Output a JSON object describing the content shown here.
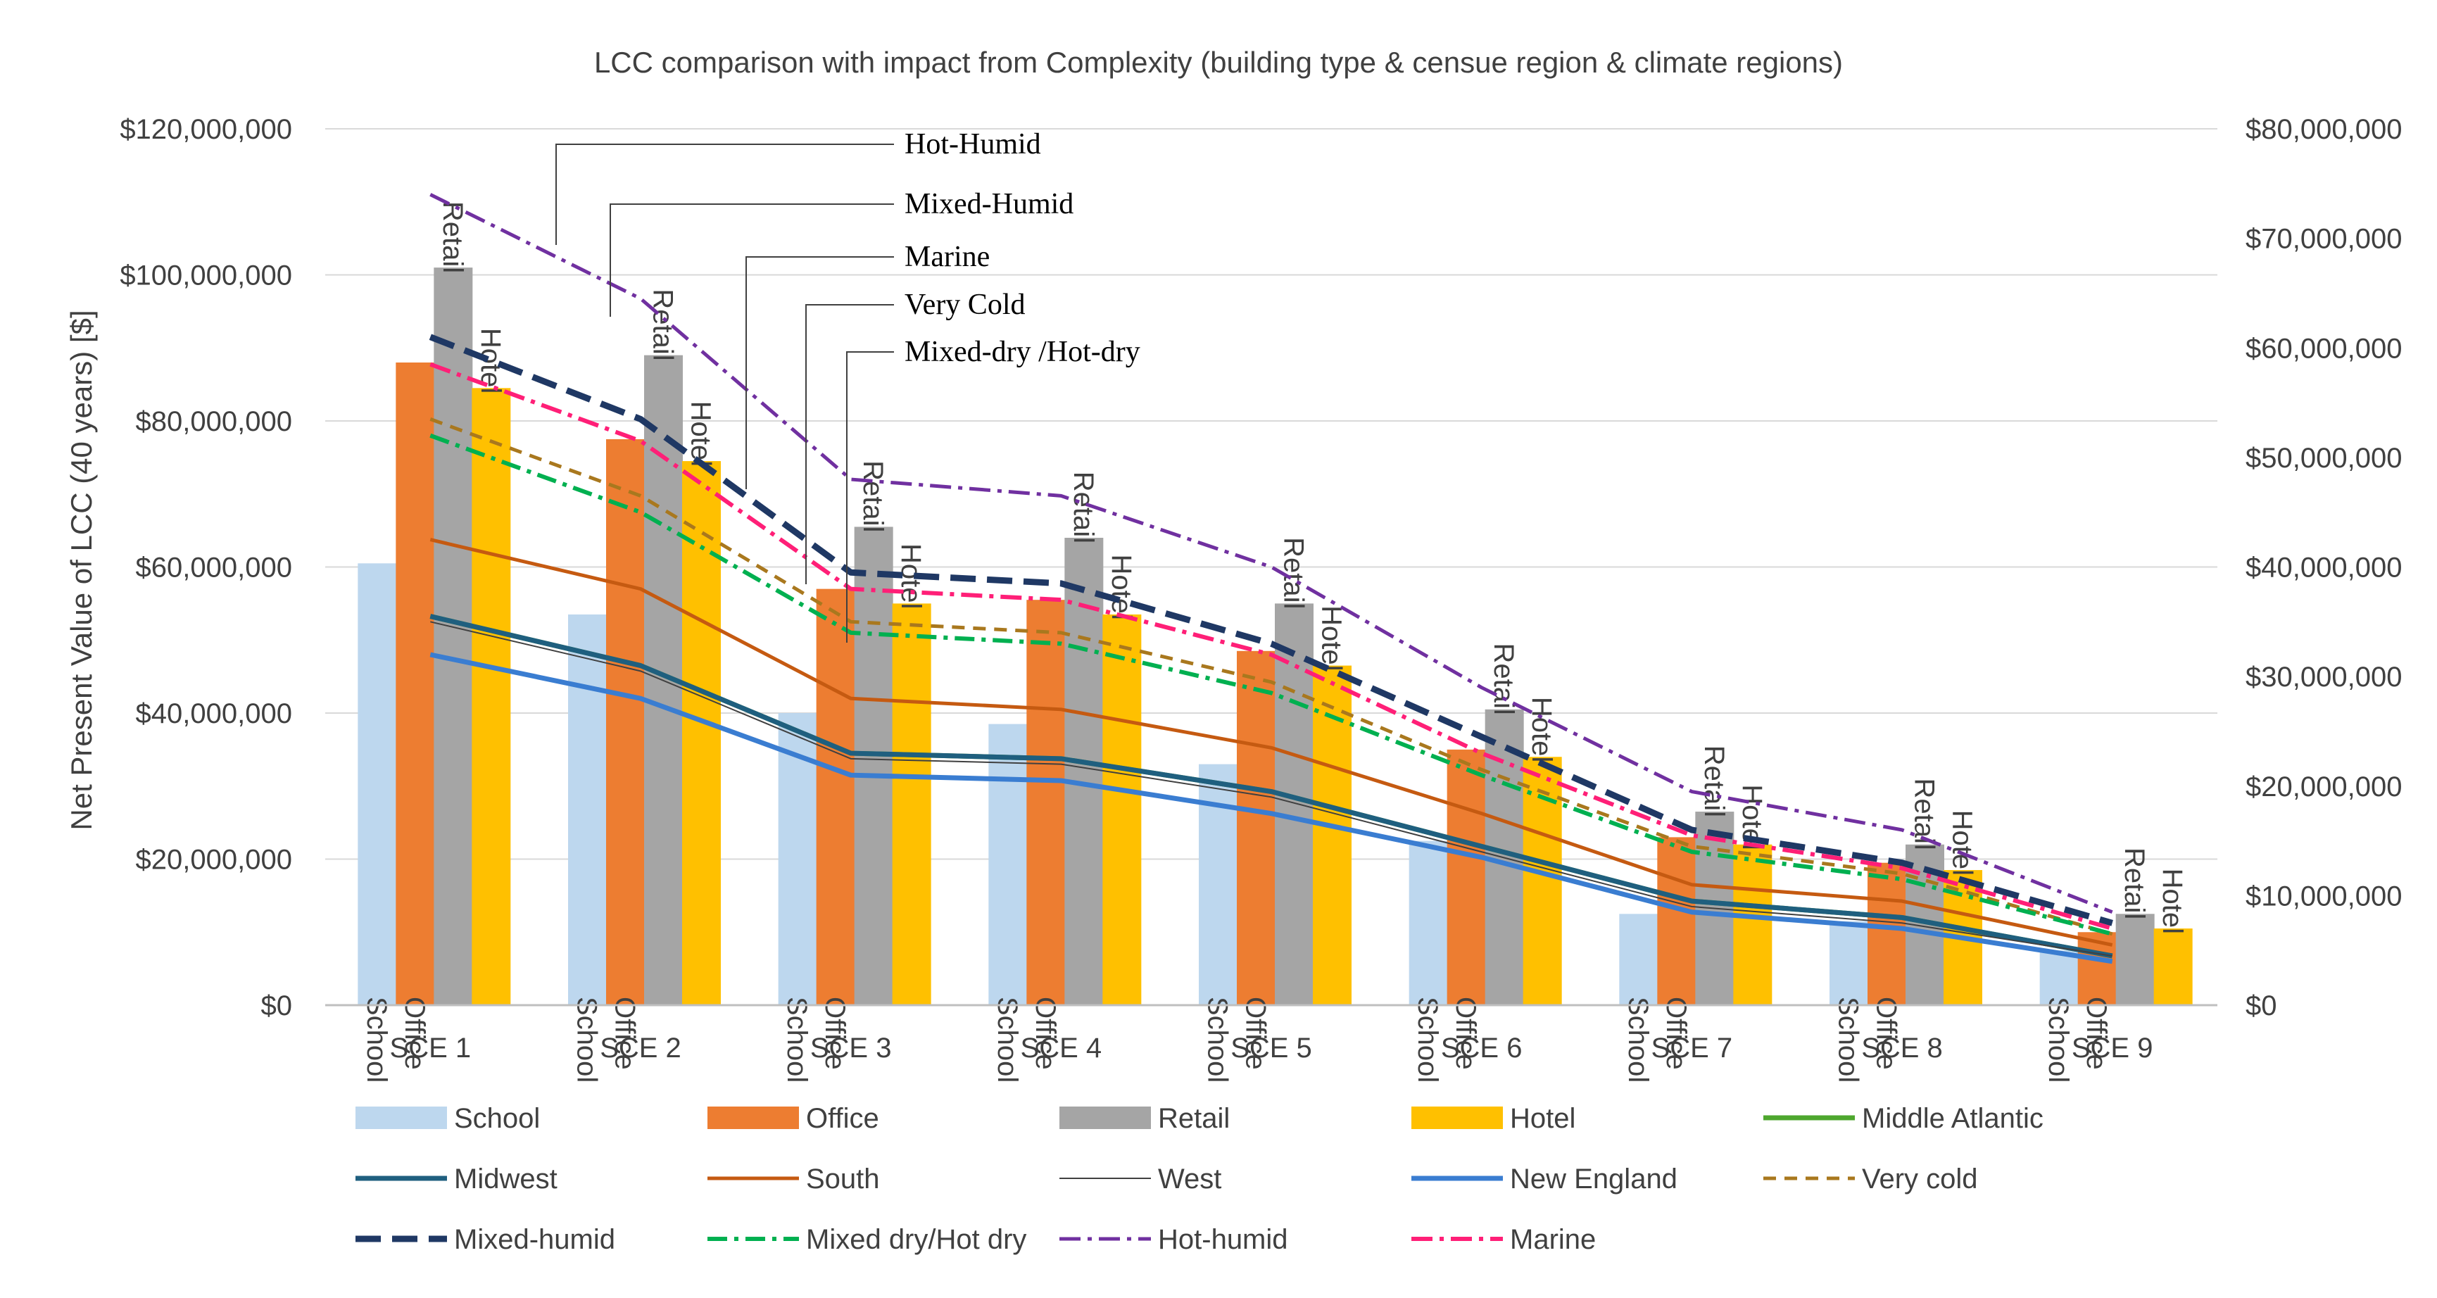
{
  "chart_data": {
    "type": "bar",
    "title": "LCC comparison with impact from Complexity (building type & censue region & climate regions)",
    "ylabel": "Net Present Value of LCC (40 years) [$]",
    "xlabel": "",
    "ylim": [
      0,
      120000000
    ],
    "y2lim": [
      0,
      80000000
    ],
    "yticks": [
      "$0",
      "$20,000,000",
      "$40,000,000",
      "$60,000,000",
      "$80,000,000",
      "$100,000,000",
      "$120,000,000"
    ],
    "y2ticks": [
      "$0",
      "$10,000,000",
      "$20,000,000",
      "$30,000,000",
      "$40,000,000",
      "$50,000,000",
      "$60,000,000",
      "$70,000,000",
      "$80,000,000"
    ],
    "grid": true,
    "categories": [
      "SCE 1",
      "SCE 2",
      "SCE 3",
      "SCE 4",
      "SCE 5",
      "SCE 6",
      "SCE 7",
      "SCE 8",
      "SCE 9"
    ],
    "bar_series": [
      {
        "name": "School",
        "color": "#bdd7ee",
        "values": [
          60500000,
          53500000,
          40000000,
          38500000,
          33000000,
          22500000,
          12500000,
          11500000,
          7500000
        ]
      },
      {
        "name": "Office",
        "color": "#ed7d31",
        "values": [
          88000000,
          77500000,
          57000000,
          55500000,
          48500000,
          35000000,
          23000000,
          19500000,
          10000000
        ]
      },
      {
        "name": "Retail",
        "color": "#a5a5a5",
        "values": [
          101000000,
          89000000,
          65500000,
          64000000,
          55000000,
          40500000,
          26500000,
          22000000,
          12500000
        ]
      },
      {
        "name": "Hotel",
        "color": "#ffc000",
        "values": [
          84500000,
          74500000,
          55000000,
          53500000,
          46500000,
          34000000,
          22000000,
          18500000,
          10500000
        ]
      }
    ],
    "line_series": [
      {
        "name": "Middle Atlantic",
        "color": "#4ea72e",
        "dash": "",
        "width": 7,
        "values": [
          35500000,
          31000000,
          23000000,
          22500000,
          19500000,
          14500000,
          9500000,
          8000000,
          4500000
        ]
      },
      {
        "name": "Midwest",
        "color": "#1f5f7f",
        "dash": "",
        "width": 7,
        "values": [
          35500000,
          31000000,
          23000000,
          22500000,
          19500000,
          14500000,
          9500000,
          8000000,
          4500000
        ]
      },
      {
        "name": "South",
        "color": "#c55a11",
        "dash": "",
        "width": 5,
        "values": [
          42500000,
          38000000,
          28000000,
          27000000,
          23500000,
          17500000,
          11000000,
          9500000,
          5500000
        ]
      },
      {
        "name": "West",
        "color": "#404040",
        "dash": "",
        "width": 2,
        "values": [
          35000000,
          30500000,
          22500000,
          22000000,
          19000000,
          14000000,
          9000000,
          7500000,
          4500000
        ]
      },
      {
        "name": "New England",
        "color": "#3a7dd1",
        "dash": "",
        "width": 7,
        "values": [
          32000000,
          28000000,
          21000000,
          20500000,
          17500000,
          13500000,
          8500000,
          7000000,
          4000000
        ]
      },
      {
        "name": "Very cold",
        "color": "#a9781e",
        "dash": "18,12",
        "width": 5,
        "values": [
          53500000,
          46500000,
          35000000,
          34000000,
          29500000,
          21500000,
          14500000,
          12000000,
          6500000
        ]
      },
      {
        "name": "Mixed-humid",
        "color": "#1f3864",
        "dash": "36,16",
        "width": 9,
        "values": [
          61000000,
          53500000,
          39500000,
          38500000,
          33000000,
          24500000,
          16000000,
          13000000,
          7500000
        ]
      },
      {
        "name": "Mixed dry/Hot dry",
        "color": "#00b050",
        "dash": "28,10,6,10",
        "width": 6,
        "values": [
          52000000,
          45000000,
          34000000,
          33000000,
          28500000,
          21000000,
          14000000,
          11500000,
          6500000
        ]
      },
      {
        "name": "Hot-humid",
        "color": "#7030a0",
        "dash": "30,10,6,10",
        "width": 5,
        "values": [
          74000000,
          64500000,
          48000000,
          46500000,
          40000000,
          29000000,
          19500000,
          16000000,
          8500000
        ]
      },
      {
        "name": "Marine",
        "color": "#ff1f77",
        "dash": "30,10,6,10",
        "width": 6,
        "values": [
          58500000,
          51500000,
          38000000,
          37000000,
          32000000,
          23000000,
          15500000,
          12500000,
          7000000
        ]
      }
    ],
    "annotations": [
      "Hot-Humid",
      "Mixed-Humid",
      "Marine",
      "Very Cold",
      "Mixed-dry /Hot-dry"
    ],
    "legend_placement": "bottom"
  }
}
